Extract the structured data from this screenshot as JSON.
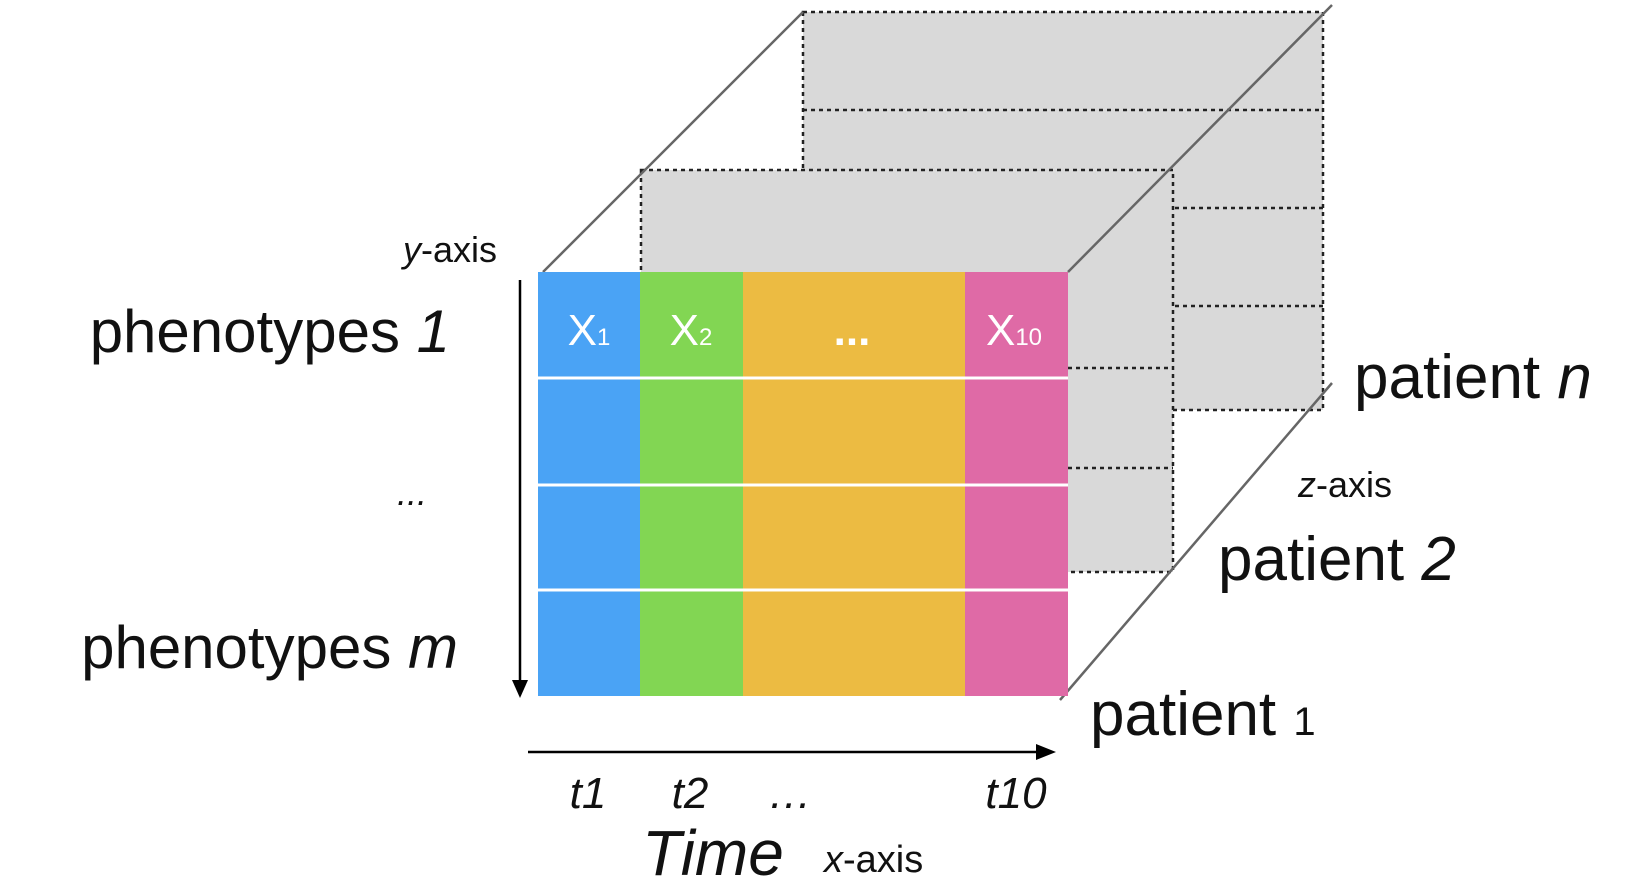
{
  "colors": {
    "x1": "#4aa3f5",
    "x2": "#82d653",
    "middle": "#ecbb42",
    "x10": "#df6aa6",
    "back_layer": "#d9d9d9",
    "edge": "#666666"
  },
  "y_axis": {
    "var": "y",
    "suffix": "-axis",
    "top": {
      "text": "phenotypes",
      "var": "1"
    },
    "middle": "...",
    "bottom": {
      "text": "phenotypes",
      "var": "m"
    }
  },
  "x_axis": {
    "var": "x",
    "suffix": "-axis",
    "title": "Time",
    "ticks": [
      "t1",
      "t2",
      "…",
      "t10"
    ]
  },
  "z_axis": {
    "var": "z",
    "suffix": "-axis",
    "patients": [
      {
        "text": "patient",
        "id": "1"
      },
      {
        "text": "patient",
        "id": "2"
      },
      {
        "text": "patient",
        "id": "n"
      }
    ]
  },
  "cells": {
    "x1": {
      "letter": "X",
      "sub": "1"
    },
    "x2": {
      "letter": "X",
      "sub": "2"
    },
    "middle": "...",
    "x10": {
      "letter": "X",
      "sub": "10"
    }
  }
}
